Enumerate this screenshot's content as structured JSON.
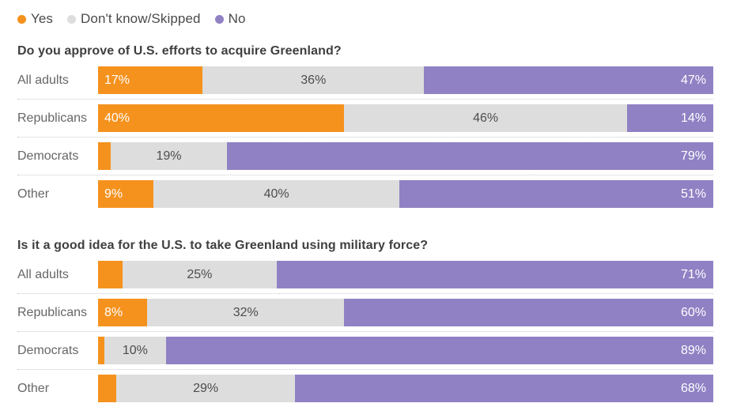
{
  "colors": {
    "yes": "#f5921e",
    "dont_know": "#dddddd",
    "no": "#9081c4"
  },
  "legend": {
    "items": [
      {
        "key": "yes",
        "label": "Yes"
      },
      {
        "key": "dont_know",
        "label": "Don't know/Skipped"
      },
      {
        "key": "no",
        "label": "No"
      }
    ]
  },
  "chart_data": [
    {
      "type": "bar",
      "stacked": true,
      "orientation": "horizontal",
      "title": "Do you approve of U.S. efforts to acquire Greenland?",
      "series_names": [
        "Yes",
        "Don't know/Skipped",
        "No"
      ],
      "categories": [
        "All adults",
        "Republicans",
        "Democrats",
        "Other"
      ],
      "xlim": [
        0,
        100
      ],
      "unit": "%",
      "grid": false,
      "legend_position": "top-left",
      "rows": [
        {
          "category": "All adults",
          "values": [
            17,
            36,
            47
          ],
          "labels": [
            "17%",
            "36%",
            "47%"
          ]
        },
        {
          "category": "Republicans",
          "values": [
            40,
            46,
            14
          ],
          "labels": [
            "40%",
            "46%",
            "14%"
          ]
        },
        {
          "category": "Democrats",
          "values": [
            2,
            19,
            79
          ],
          "labels": [
            "",
            "19%",
            "79%"
          ]
        },
        {
          "category": "Other",
          "values": [
            9,
            40,
            51
          ],
          "labels": [
            "9%",
            "40%",
            "51%"
          ]
        }
      ]
    },
    {
      "type": "bar",
      "stacked": true,
      "orientation": "horizontal",
      "title": "Is it a good idea for the U.S. to take Greenland using military force?",
      "series_names": [
        "Yes",
        "Don't know/Skipped",
        "No"
      ],
      "categories": [
        "All adults",
        "Republicans",
        "Democrats",
        "Other"
      ],
      "xlim": [
        0,
        100
      ],
      "unit": "%",
      "grid": false,
      "rows": [
        {
          "category": "All adults",
          "values": [
            4,
            25,
            71
          ],
          "labels": [
            "",
            "25%",
            "71%"
          ]
        },
        {
          "category": "Republicans",
          "values": [
            8,
            32,
            60
          ],
          "labels": [
            "8%",
            "32%",
            "60%"
          ]
        },
        {
          "category": "Democrats",
          "values": [
            1,
            10,
            89
          ],
          "labels": [
            "",
            "10%",
            "89%"
          ]
        },
        {
          "category": "Other",
          "values": [
            3,
            29,
            68
          ],
          "labels": [
            "",
            "29%",
            "68%"
          ]
        }
      ]
    }
  ]
}
